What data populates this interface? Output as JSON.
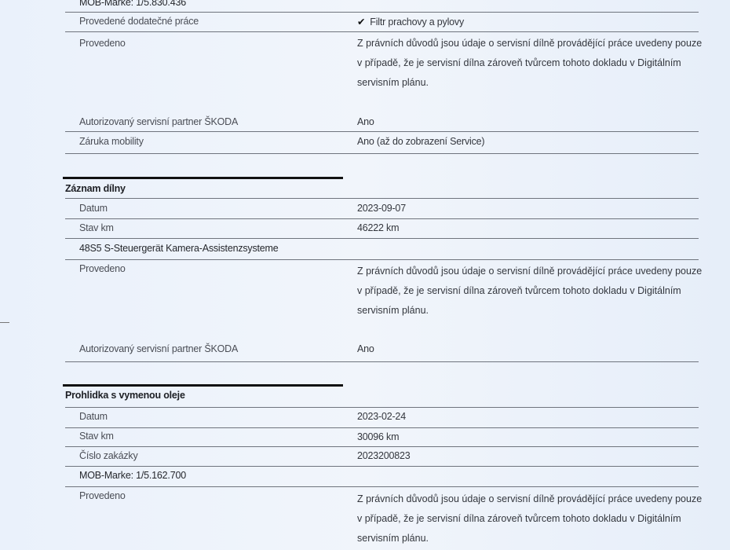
{
  "section_prev": {
    "mob_marke": "MOB-Marke: 1/5.830.436",
    "rows": [
      {
        "label": "Provedené dodatečné práce",
        "value": "Filtr prachovy a pylovy",
        "icon": "checkmark-icon"
      },
      {
        "label": "Provedeno",
        "value": "Z právních důvodů jsou údaje o servisní dílně provádějící práce uvedeny pouze v případě, že je servisní dílna zároveň tvůrcem tohoto dokladu v Digitálním servisním plánu."
      },
      {
        "label": "Autorizovaný servisní partner ŠKODA",
        "value": "Ano"
      },
      {
        "label": "Záruka mobility",
        "value": "Ano (až do zobrazení Service)"
      }
    ]
  },
  "section_workshop": {
    "title": "Záznam dílny",
    "rows": [
      {
        "label": "Datum",
        "value": "2023-09-07"
      },
      {
        "label": "Stav km",
        "value": "46222 km"
      }
    ],
    "item": "48S5 S-Steuergerät Kamera-Assistenzsysteme",
    "performed": {
      "label": "Provedeno",
      "value": "Z právních důvodů jsou údaje o servisní dílně provádějící práce uvedeny pouze v případě, že je servisní dílna zároveň tvůrcem tohoto dokladu v Digitálním servisním plánu."
    },
    "partner": {
      "label": "Autorizovaný servisní partner ŠKODA",
      "value": "Ano"
    }
  },
  "section_oil": {
    "title": "Prohlidka s vymenou oleje",
    "rows": [
      {
        "label": "Datum",
        "value": "2023-02-24"
      },
      {
        "label": "Stav km",
        "value": "30096 km"
      },
      {
        "label": "Číslo zakázky",
        "value": "2023200823"
      }
    ],
    "mob_marke": "MOB-Marke: 1/5.162.700",
    "performed": {
      "label": "Provedeno",
      "value": "Z právních důvodů jsou údaje o servisní dílně provádějící práce uvedeny pouze v případě, že je servisní dílna zároveň tvůrcem tohoto dokladu v Digitálním servisním plánu."
    }
  }
}
